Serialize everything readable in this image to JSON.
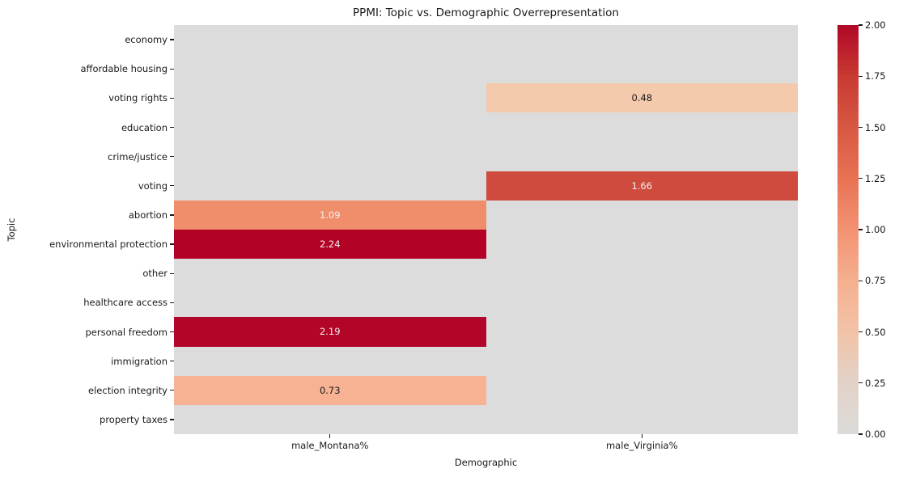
{
  "chart_data": {
    "type": "heatmap",
    "title": "PPMI: Topic vs. Demographic Overrepresentation",
    "xlabel": "Demographic",
    "ylabel": "Topic",
    "columns": [
      "male_Montana%",
      "male_Virginia%"
    ],
    "rows": [
      "economy",
      "affordable housing",
      "voting rights",
      "education",
      "crime/justice",
      "voting",
      "abortion",
      "environmental protection",
      "other",
      "healthcare access",
      "personal freedom",
      "immigration",
      "election integrity",
      "property taxes"
    ],
    "values": [
      [
        0,
        0
      ],
      [
        0,
        0
      ],
      [
        0,
        0.48
      ],
      [
        0,
        0
      ],
      [
        0,
        0
      ],
      [
        0,
        1.66
      ],
      [
        1.09,
        0
      ],
      [
        2.24,
        0
      ],
      [
        0,
        0
      ],
      [
        0,
        0
      ],
      [
        2.19,
        0
      ],
      [
        0,
        0
      ],
      [
        0.73,
        0
      ],
      [
        0,
        0
      ]
    ],
    "cell_labels": [
      [
        "",
        ""
      ],
      [
        "",
        ""
      ],
      [
        "",
        "0.48"
      ],
      [
        "",
        ""
      ],
      [
        "",
        ""
      ],
      [
        "",
        "1.66"
      ],
      [
        "1.09",
        ""
      ],
      [
        "2.24",
        ""
      ],
      [
        "",
        ""
      ],
      [
        "",
        ""
      ],
      [
        "2.19",
        ""
      ],
      [
        "",
        ""
      ],
      [
        "0.73",
        ""
      ],
      [
        "",
        ""
      ]
    ],
    "cell_colors": [
      [
        "#dcdcdc",
        "#dcdcdc"
      ],
      [
        "#dcdcdc",
        "#dcdcdc"
      ],
      [
        "#dcdcdc",
        "#f5c9ac"
      ],
      [
        "#dcdcdc",
        "#dcdcdc"
      ],
      [
        "#dcdcdc",
        "#dcdcdc"
      ],
      [
        "#dcdcdc",
        "#ce4b3d"
      ],
      [
        "#f08d6a",
        "#dcdcdc"
      ],
      [
        "#b40226",
        "#dcdcdc"
      ],
      [
        "#dcdcdc",
        "#dcdcdc"
      ],
      [
        "#dcdcdc",
        "#dcdcdc"
      ],
      [
        "#b20527",
        "#dcdcdc"
      ],
      [
        "#dcdcdc",
        "#dcdcdc"
      ],
      [
        "#f6b292",
        "#dcdcdc"
      ],
      [
        "#dcdcdc",
        "#dcdcdc"
      ]
    ],
    "annotation_text_dark": "#1a1a1a",
    "annotation_text_light": "#f2f2f2",
    "zero_color": "#dcdcdc",
    "grid": false,
    "legend_position": "right-colorbar",
    "colorbar": {
      "min": 0,
      "max": 2,
      "tick_labels": [
        "0.00",
        "0.25",
        "0.50",
        "0.75",
        "1.00",
        "1.25",
        "1.50",
        "1.75",
        "2.00"
      ],
      "gradient_stops": [
        "#dcdbd9",
        "#e2d2c8",
        "#f2c3a8",
        "#f5b08f",
        "#f29273",
        "#e87254",
        "#d85843",
        "#c83a32",
        "#b00726"
      ]
    }
  }
}
